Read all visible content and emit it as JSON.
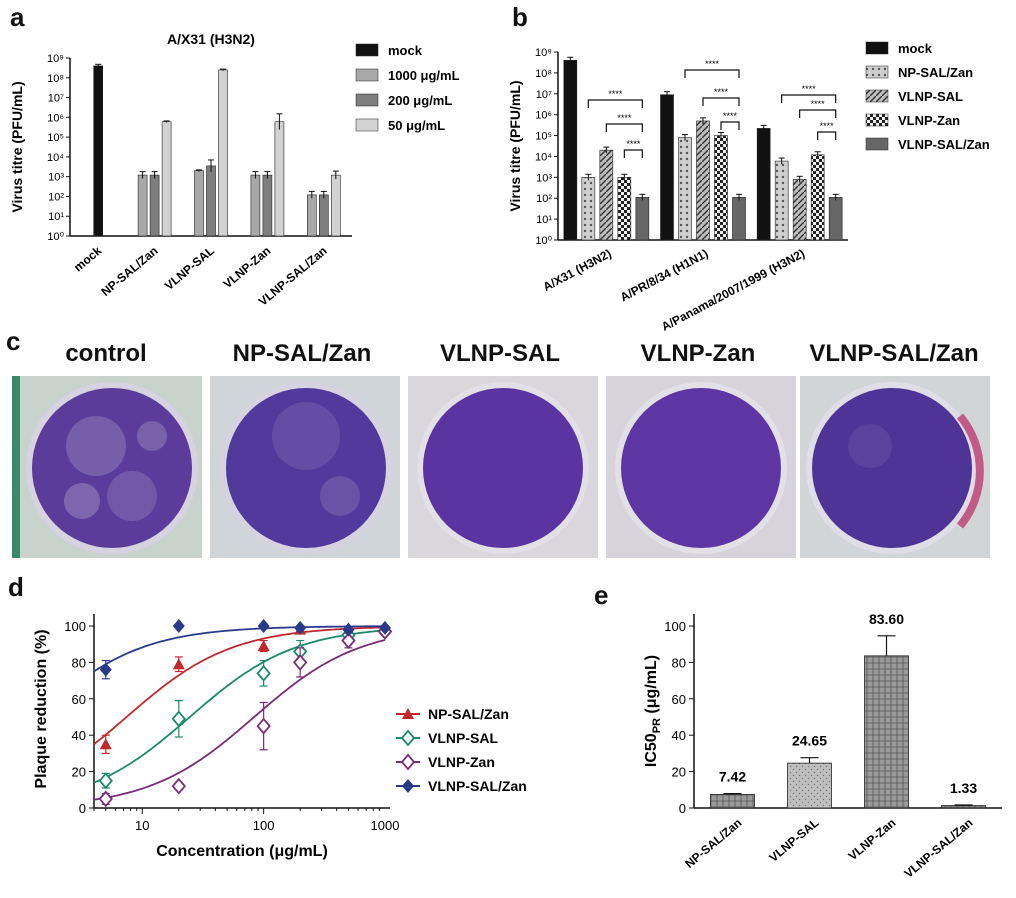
{
  "panels": {
    "a": "a",
    "b": "b",
    "c": "c",
    "d": "d",
    "e": "e"
  },
  "chart_data": [
    {
      "id": "a",
      "type": "bar",
      "title": "A/X31 (H3N2)",
      "ylabel": "Virus titre (PFU/mL)",
      "yscale": "log",
      "ylim": [
        1,
        1000000000
      ],
      "yticks": [
        "10⁰",
        "10¹",
        "10²",
        "10³",
        "10⁴",
        "10⁵",
        "10⁶",
        "10⁷",
        "10⁸",
        "10⁹"
      ],
      "categories": [
        "mock",
        "NP-SAL/Zan",
        "VLNP-SAL",
        "VLNP-Zan",
        "VLNP-SAL/Zan"
      ],
      "legend_position": "right",
      "series": [
        {
          "name": "mock",
          "color": "#111111",
          "values": [
            400000000,
            null,
            null,
            null,
            null
          ],
          "errors": [
            1.2,
            null,
            null,
            null,
            null
          ]
        },
        {
          "name": "1000 μg/mL",
          "color": "#a8a8a8",
          "values": [
            null,
            1200,
            2000,
            1200,
            120
          ],
          "errors": [
            null,
            1.5,
            1.1,
            1.5,
            1.5
          ]
        },
        {
          "name": "200 μg/mL",
          "color": "#7e7e7e",
          "values": [
            null,
            1200,
            3500,
            1200,
            120
          ],
          "errors": [
            null,
            1.5,
            2,
            1.5,
            1.5
          ]
        },
        {
          "name": "50 μg/mL",
          "color": "#d2d2d2",
          "values": [
            null,
            600000,
            250000000,
            600000,
            1200
          ],
          "errors": [
            null,
            1.1,
            1.1,
            2.5,
            1.6
          ]
        }
      ]
    },
    {
      "id": "b",
      "type": "bar",
      "ylabel": "Virus titre (PFU/mL)",
      "yscale": "log",
      "ylim": [
        1,
        1000000000
      ],
      "yticks": [
        "10⁰",
        "10¹",
        "10²",
        "10³",
        "10⁴",
        "10⁵",
        "10⁶",
        "10⁷",
        "10⁸",
        "10⁹"
      ],
      "categories": [
        "A/X31 (H3N2)",
        "A/PR/8/34 (H1N1)",
        "A/Panama/2007/1999 (H3N2)"
      ],
      "legend_position": "right",
      "series": [
        {
          "name": "mock",
          "color": "#111111",
          "pattern": "solid",
          "values": [
            400000000,
            9000000,
            220000
          ]
        },
        {
          "name": "NP-SAL/Zan",
          "color": "#999999",
          "pattern": "dots",
          "values": [
            1000,
            80000,
            6000
          ]
        },
        {
          "name": "VLNP-SAL",
          "color": "#777777",
          "pattern": "diag",
          "values": [
            20000,
            500000,
            800
          ]
        },
        {
          "name": "VLNP-Zan",
          "color": "#333333",
          "pattern": "check",
          "values": [
            1000,
            100000,
            12000
          ]
        },
        {
          "name": "VLNP-SAL/Zan",
          "color": "#666666",
          "pattern": "solid",
          "values": [
            110,
            110,
            110
          ]
        }
      ],
      "significance": "****"
    },
    {
      "id": "d",
      "type": "scatter",
      "xlabel": "Concentration (μg/mL)",
      "ylabel": "Plaque reduction (%)",
      "xscale": "log",
      "xlim": [
        4,
        1100
      ],
      "ylim": [
        0,
        100
      ],
      "xticks": [
        "10",
        "100",
        "1000"
      ],
      "yticks": [
        "0",
        "20",
        "40",
        "60",
        "80",
        "100"
      ],
      "legend_position": "right",
      "series": [
        {
          "name": "NP-SAL/Zan",
          "color": "#c0282e",
          "marker": "triangle",
          "x": [
            5,
            20,
            100,
            200,
            500,
            1000
          ],
          "y": [
            35,
            79,
            89,
            98,
            98,
            99
          ],
          "err": [
            5,
            4,
            3,
            1,
            1,
            1
          ],
          "ic50": 7.42
        },
        {
          "name": "VLNP-SAL",
          "color": "#1a8a6a",
          "marker": "diamond-open",
          "x": [
            5,
            20,
            100,
            200,
            500,
            1000
          ],
          "y": [
            15,
            49,
            74,
            86,
            95,
            97
          ],
          "err": [
            4,
            10,
            7,
            6,
            3,
            1
          ],
          "ic50": 24.65
        },
        {
          "name": "VLNP-Zan",
          "color": "#7a2a7a",
          "marker": "diamond-open",
          "x": [
            5,
            20,
            100,
            200,
            500,
            1000
          ],
          "y": [
            5,
            12,
            45,
            80,
            92,
            97
          ],
          "err": [
            3,
            2,
            13,
            8,
            4,
            2
          ],
          "ic50": 83.6
        },
        {
          "name": "VLNP-SAL/Zan",
          "color": "#2a3a8a",
          "marker": "diamond",
          "x": [
            5,
            20,
            100,
            200,
            500,
            1000
          ],
          "y": [
            76,
            100,
            100,
            99,
            98,
            99
          ],
          "err": [
            5,
            1,
            1,
            1,
            1,
            1
          ],
          "ic50": 1.33
        }
      ]
    },
    {
      "id": "e",
      "type": "bar",
      "ylabel": "IC50PR (μg/mL)",
      "ylim": [
        0,
        100
      ],
      "yticks": [
        "0",
        "20",
        "40",
        "60",
        "80",
        "100"
      ],
      "categories": [
        "NP-SAL/Zan",
        "VLNP-SAL",
        "VLNP-Zan",
        "VLNP-SAL/Zan"
      ],
      "values": [
        7.42,
        24.65,
        83.6,
        1.33
      ],
      "errors": [
        0.5,
        3,
        11,
        0.3
      ],
      "data_labels": [
        "7.42",
        "24.65",
        "83.60",
        "1.33"
      ],
      "colors": [
        "#555555",
        "#aaaaaa",
        "#777777",
        "#444444"
      ]
    }
  ],
  "plates": {
    "labels": [
      "control",
      "NP-SAL/Zan",
      "VLNP-SAL",
      "VLNP-Zan",
      "VLNP-SAL/Zan"
    ]
  }
}
